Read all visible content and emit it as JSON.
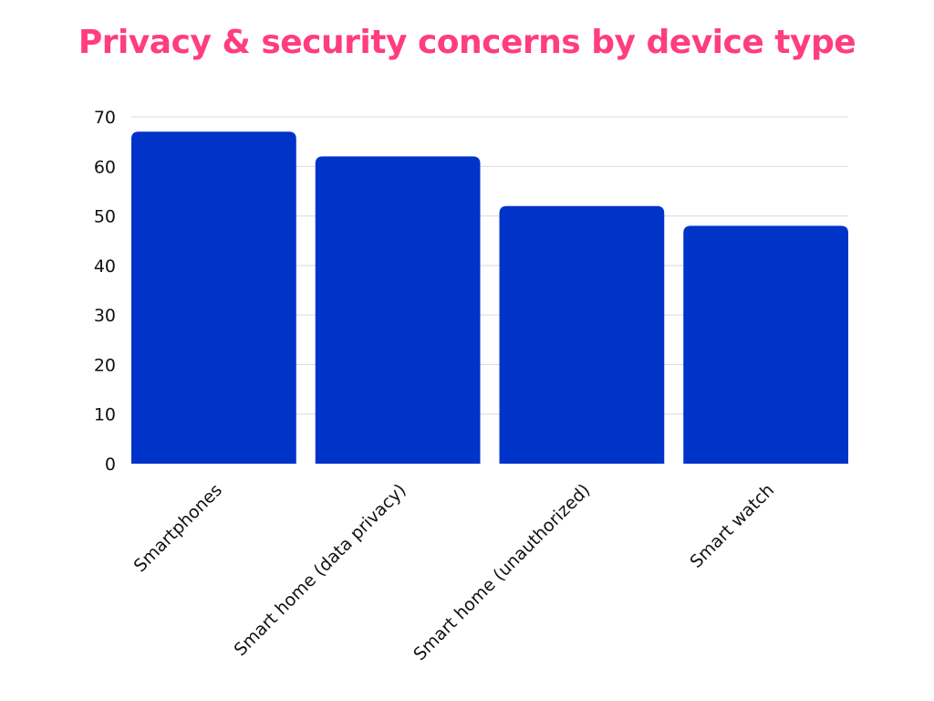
{
  "chart_data": {
    "type": "bar",
    "title": "Privacy & security concerns by device type",
    "categories": [
      "Smartphones",
      "Smart home (data privacy)",
      "Smart home (unauthorized)",
      "Smart watch"
    ],
    "values": [
      67,
      62,
      52,
      48
    ],
    "yticks": [
      "0",
      "10",
      "20",
      "30",
      "40",
      "50",
      "60",
      "70"
    ],
    "ylim": [
      0,
      70
    ],
    "grid": true,
    "legend": "none",
    "colors": {
      "bar": "#0033c8",
      "title": "#ff3d7f"
    }
  }
}
